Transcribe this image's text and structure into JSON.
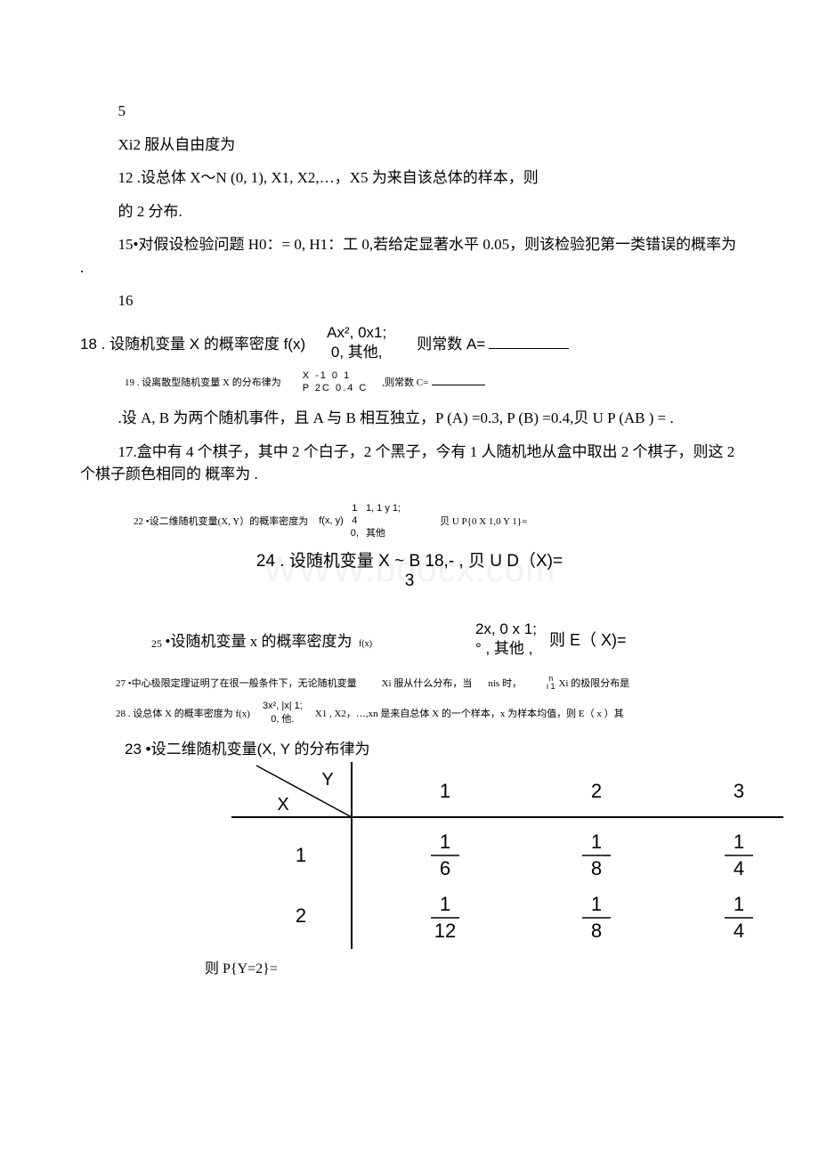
{
  "topLines": {
    "l1": "5",
    "l2": "Xi2 服从自由度为",
    "l3": "12 .设总体 X～N (0, 1), X1, X2,…，X5 为来自该总体的样本，则",
    "l4": "的 2 分布.",
    "l5": "15•对假设检验问题 H0：= 0, H1：工 0,若给定显著水平 0.05，则该检验犯第一类错误的概率为 .",
    "l6": "16"
  },
  "q18": {
    "left": "18 . 设随机变量 X 的概率密度 f(x)",
    "mid_top": "Ax², 0x1;",
    "mid_bot": "0, 其他,",
    "right": "则常数 A="
  },
  "q19": {
    "left": "19 . 设离散型随机变量 X 的分布律为",
    "row1": "X  -1    0    1",
    "row2": "P  2C 0.4 C",
    "right": ",则常数 C="
  },
  "q_ab": ".设 A, B 为两个随机事件，且 A 与 B 相互独立，P (A) =0.3, P (B) =0.4,贝 U P (AB ) = .",
  "q17": "17.盒中有 4 个棋子，其中 2 个白子，2 个黑子，今有 1 人随机地从盒中取出 2 个棋子，则这 2 个棋子颜色相同的 概率为 .",
  "q22": {
    "left": "22 •设二维随机变量(X,        Y）的概率密度为",
    "fx": "f(x, y)",
    "brace_top": "1",
    "brace_mid": "4",
    "brace_bot": "0,",
    "cond_top": "1,   1 y 1;",
    "cond_bot": "其他",
    "right": "贝 U P{0 X 1,0 Y 1}="
  },
  "watermark": "WWW.bdocx.com",
  "q24": {
    "line1": "24 . 设随机变量  X ~ B 18,-  ,   贝 U D（X)=",
    "line2": "3"
  },
  "q25": {
    "left_prefix": "25",
    "left_text": "•设随机变量 x 的概率密度为",
    "fx": "f(x)",
    "top": "2x,   0 x 1;",
    "bot": "°   , 其他 ,",
    "right": "则  E（ X)="
  },
  "q27": {
    "left": "27 •中心极限定理证明了在很一般条件下，无论随机变量",
    "mid": "Xi 服从什么分布，当",
    "nis": "nis 时，",
    "sum_top": "n",
    "sum_bot": "i 1",
    "right": "Xi 的极限分布是"
  },
  "q28": {
    "left": "28 . 设总体 X 的概率密度为     f(x)",
    "mid_top": "3x², |x| 1;",
    "mid_bot": "0,    他.",
    "right": "X1 , X2，…,xn 是来自总体 X 的一个样本，x 为样本均值，则  E（ x ）其"
  },
  "q23": {
    "heading": "23 •设二维随机变量(X,        Y   的分布律为",
    "colHeaders": [
      "1",
      "2",
      "3"
    ],
    "rowHeaders": [
      "1",
      "2"
    ],
    "cells": [
      [
        {
          "num": "1",
          "den": "6"
        },
        {
          "num": "1",
          "den": "8"
        },
        {
          "num": "1",
          "den": "4"
        }
      ],
      [
        {
          "num": "1",
          "den": "12"
        },
        {
          "num": "1",
          "den": "8"
        },
        {
          "num": "1",
          "den": "4"
        }
      ]
    ],
    "cornerX": "X",
    "cornerY": "Y",
    "after": "则 P{Y=2}="
  },
  "colors": {
    "text": "#000000",
    "watermark": "#f2f2f2",
    "rule": "#000000"
  }
}
